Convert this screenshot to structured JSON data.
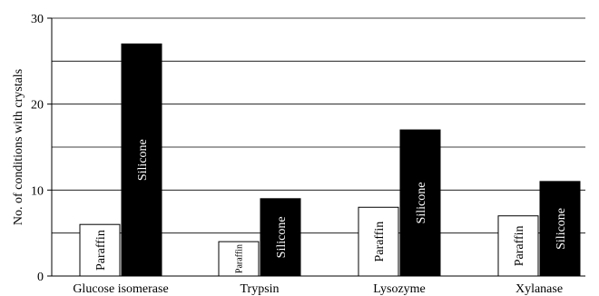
{
  "chart_data": {
    "type": "bar",
    "title": "",
    "xlabel": "",
    "ylabel": "No. of conditions with crystals",
    "ylim": [
      0,
      30
    ],
    "yticks": [
      0,
      10,
      20,
      30
    ],
    "grid": true,
    "categories": [
      "Glucose isomerase",
      "Trypsin",
      "Lysozyme",
      "Xylanase"
    ],
    "series": [
      {
        "name": "Paraffin",
        "values": [
          6,
          4,
          8,
          7
        ],
        "fill": "#ffffff",
        "label_color": "#000000"
      },
      {
        "name": "Silicone",
        "values": [
          27,
          9,
          17,
          11
        ],
        "fill": "#000000",
        "label_color": "#ffffff"
      }
    ]
  }
}
